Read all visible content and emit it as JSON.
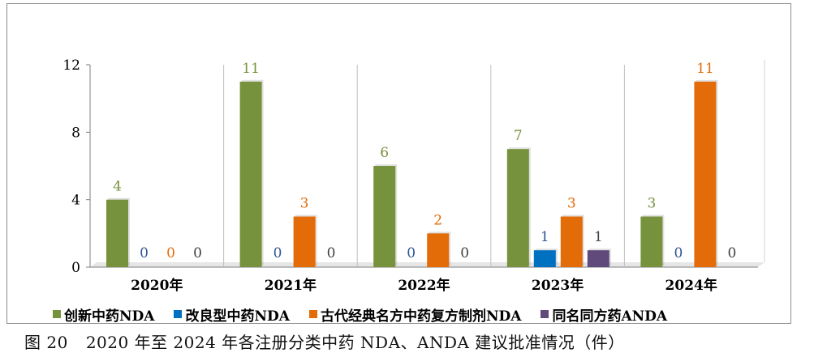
{
  "chart_data": {
    "type": "bar",
    "categories": [
      "2020年",
      "2021年",
      "2022年",
      "2023年",
      "2024年"
    ],
    "series": [
      {
        "name": "创新中药NDA",
        "color": "#76923c",
        "label_color": "#76923c",
        "values": [
          4,
          11,
          6,
          7,
          3
        ]
      },
      {
        "name": "改良型中药NDA",
        "color": "#0070c0",
        "label_color": "#2f5597",
        "values": [
          0,
          0,
          0,
          1,
          0
        ]
      },
      {
        "name": "古代经典名方中药复方制剂NDA",
        "color": "#e36c09",
        "label_color": "#e36c09",
        "values": [
          0,
          3,
          2,
          3,
          11
        ]
      },
      {
        "name": "同名同方药ANDA",
        "color": "#604a7b",
        "label_color": "#404040",
        "values": [
          0,
          0,
          0,
          1,
          0
        ]
      }
    ],
    "data_labels": [
      [
        "4",
        "0",
        "0",
        "0"
      ],
      [
        "11",
        "0",
        "3",
        "0"
      ],
      [
        "6",
        "0",
        "2",
        "0"
      ],
      [
        "7",
        "1",
        "3",
        "1"
      ],
      [
        "3",
        "0",
        "11",
        "0"
      ]
    ],
    "yticks": [
      "0",
      "4",
      "8",
      "12"
    ],
    "ylim": [
      0,
      12
    ],
    "legend_position": "bottom",
    "grid": false
  },
  "caption": {
    "figure_no": "图 20",
    "text": "2020 年至 2024 年各注册分类中药 NDA、ANDA 建议批准情况（件）"
  }
}
